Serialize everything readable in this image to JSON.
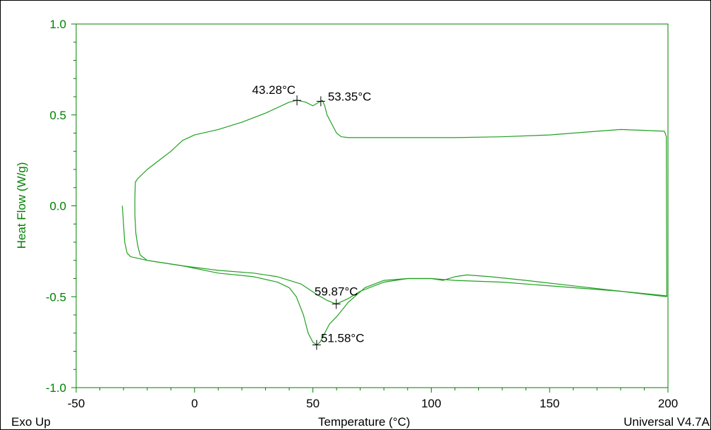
{
  "colors": {
    "axis": "#008000",
    "trace": "#22a022",
    "text": "#000000",
    "background": "#ffffff"
  },
  "footer": {
    "exo_label": "Exo Up",
    "software_version": "Universal V4.7A"
  },
  "chart_data": {
    "type": "line",
    "title": "",
    "xlabel": "Temperature (°C)",
    "ylabel": "Heat Flow (W/g)",
    "xlim": [
      -50,
      200
    ],
    "ylim": [
      -1.0,
      1.0
    ],
    "x_ticks": [
      "-50",
      "0",
      "50",
      "100",
      "150",
      "200"
    ],
    "y_ticks": [
      "1.0",
      "0.5",
      "0.0",
      "-0.5",
      "-1.0"
    ],
    "series": [
      {
        "values": [
          [
            -30.5,
            0.0
          ],
          [
            -30,
            -0.1
          ],
          [
            -29.5,
            -0.2
          ],
          [
            -28.5,
            -0.26
          ],
          [
            -27,
            -0.28
          ],
          [
            -20,
            -0.3
          ],
          [
            -5,
            -0.33
          ],
          [
            10,
            -0.37
          ],
          [
            25,
            -0.39
          ],
          [
            35,
            -0.42
          ],
          [
            40,
            -0.45
          ],
          [
            43,
            -0.5
          ],
          [
            46,
            -0.6
          ],
          [
            48,
            -0.7
          ],
          [
            50,
            -0.75
          ],
          [
            51.58,
            -0.765
          ],
          [
            53,
            -0.75
          ],
          [
            55,
            -0.7
          ],
          [
            57,
            -0.65
          ],
          [
            60,
            -0.61
          ],
          [
            65,
            -0.53
          ],
          [
            72,
            -0.45
          ],
          [
            80,
            -0.41
          ],
          [
            90,
            -0.4
          ],
          [
            100,
            -0.4
          ],
          [
            105,
            -0.41
          ],
          [
            110,
            -0.39
          ],
          [
            115,
            -0.38
          ],
          [
            125,
            -0.39
          ],
          [
            140,
            -0.41
          ],
          [
            160,
            -0.44
          ],
          [
            180,
            -0.47
          ],
          [
            199.5,
            -0.495
          ]
        ]
      },
      {
        "values": [
          [
            199.5,
            -0.5
          ],
          [
            199.3,
            0.38
          ],
          [
            198.5,
            0.41
          ],
          [
            190,
            0.415
          ],
          [
            180,
            0.42
          ],
          [
            170,
            0.41
          ],
          [
            150,
            0.39
          ],
          [
            130,
            0.38
          ],
          [
            110,
            0.375
          ],
          [
            95,
            0.375
          ],
          [
            80,
            0.375
          ],
          [
            70,
            0.375
          ],
          [
            65,
            0.375
          ],
          [
            62,
            0.38
          ],
          [
            60,
            0.4
          ],
          [
            58,
            0.45
          ],
          [
            56,
            0.5
          ],
          [
            55,
            0.55
          ],
          [
            54,
            0.58
          ],
          [
            53.35,
            0.575
          ],
          [
            52.5,
            0.57
          ],
          [
            50,
            0.55
          ],
          [
            47,
            0.57
          ],
          [
            43.28,
            0.58
          ],
          [
            40,
            0.57
          ],
          [
            30,
            0.51
          ],
          [
            20,
            0.46
          ],
          [
            10,
            0.42
          ],
          [
            0,
            0.39
          ],
          [
            -5,
            0.36
          ],
          [
            -10,
            0.3
          ],
          [
            -15,
            0.25
          ],
          [
            -20,
            0.2
          ],
          [
            -24,
            0.15
          ],
          [
            -25,
            0.13
          ],
          [
            -25.2,
            0.05
          ],
          [
            -25.2,
            -0.05
          ],
          [
            -24.8,
            -0.15
          ],
          [
            -24,
            -0.22
          ],
          [
            -23,
            -0.27
          ],
          [
            -20,
            -0.3
          ],
          [
            -5,
            -0.33
          ],
          [
            10,
            -0.355
          ],
          [
            25,
            -0.37
          ],
          [
            35,
            -0.39
          ],
          [
            45,
            -0.43
          ],
          [
            52,
            -0.49
          ],
          [
            56,
            -0.52
          ],
          [
            59.87,
            -0.54
          ],
          [
            65,
            -0.51
          ],
          [
            70,
            -0.47
          ],
          [
            80,
            -0.42
          ],
          [
            90,
            -0.4
          ],
          [
            100,
            -0.4
          ],
          [
            110,
            -0.41
          ],
          [
            130,
            -0.42
          ],
          [
            160,
            -0.45
          ],
          [
            180,
            -0.47
          ],
          [
            199.5,
            -0.5
          ]
        ]
      }
    ],
    "annotations": [
      {
        "x": 43.28,
        "y": 0.58,
        "label": "43.28°C",
        "anchor": "end",
        "dx": -2,
        "dy": -9
      },
      {
        "x": 53.35,
        "y": 0.575,
        "label": "53.35°C",
        "anchor": "start",
        "dx": 10,
        "dy": -1
      },
      {
        "x": 59.87,
        "y": -0.54,
        "label": "59.87°C",
        "anchor": "middle",
        "dx": 0,
        "dy": -12
      },
      {
        "x": 51.58,
        "y": -0.765,
        "label": "51.58°C",
        "anchor": "start",
        "dx": 6,
        "dy": -4
      }
    ]
  }
}
